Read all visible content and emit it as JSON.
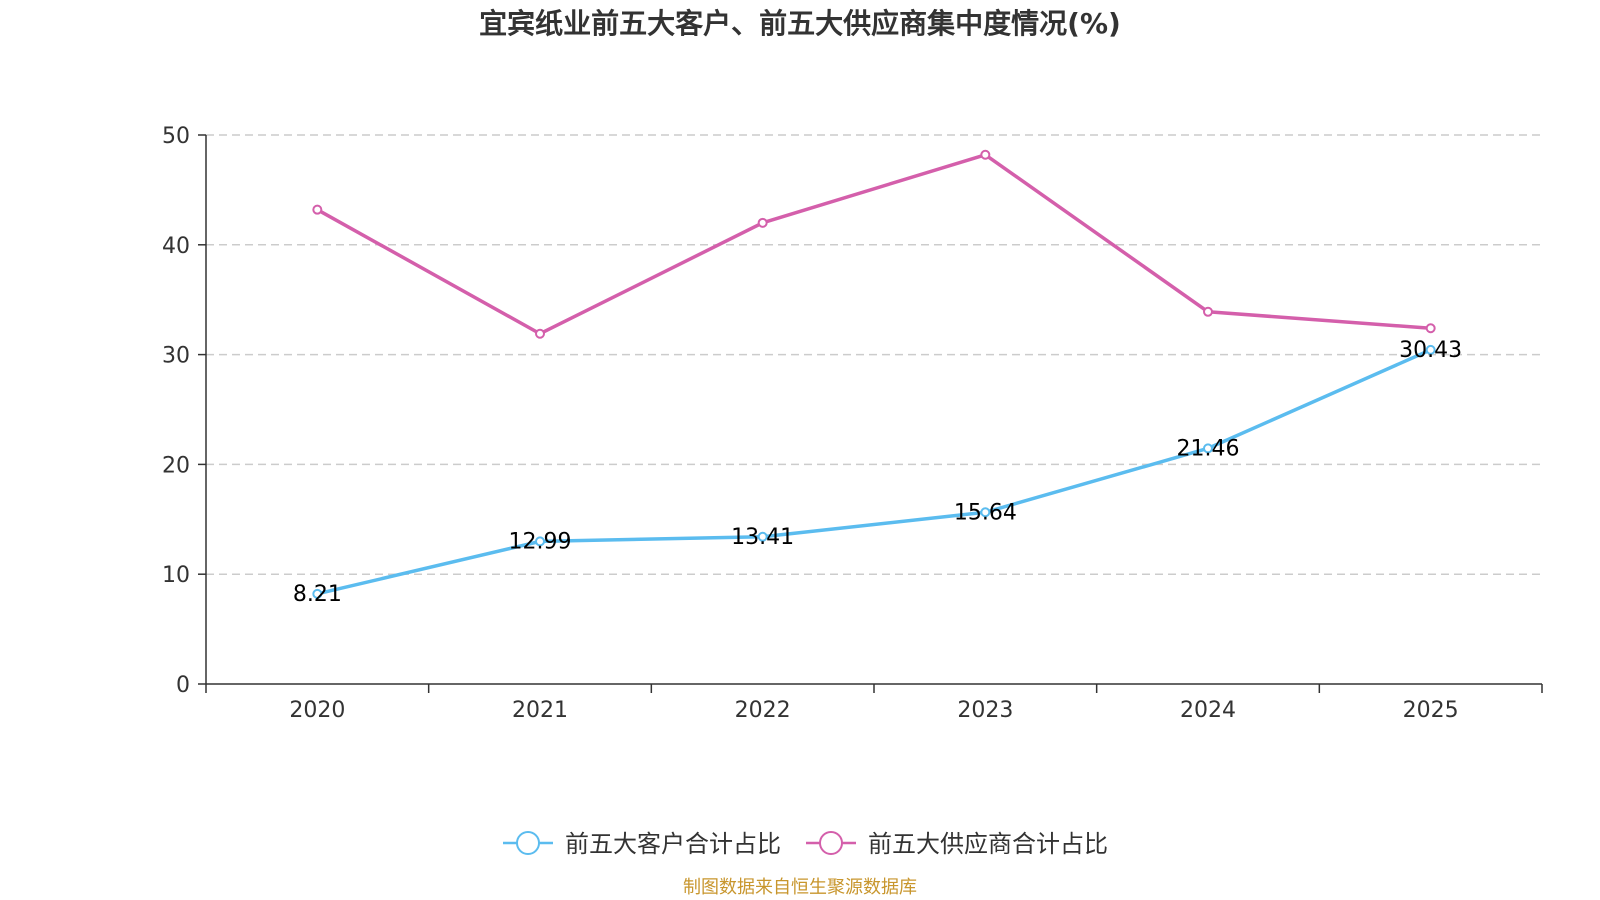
{
  "chart_data": {
    "type": "line",
    "title": "宜宾纸业前五大客户、前五大供应商集中度情况(%)",
    "xlabel": "",
    "ylabel": "",
    "categories": [
      "2020",
      "2021",
      "2022",
      "2023",
      "2024",
      "2025"
    ],
    "ylim": [
      0,
      50
    ],
    "yticks": [
      0,
      10,
      20,
      30,
      40,
      50
    ],
    "grid": true,
    "legend_position": "bottom-center",
    "series": [
      {
        "name": "前五大客户合计占比",
        "color": "#5bbcef",
        "values": [
          8.21,
          12.99,
          13.41,
          15.64,
          21.46,
          30.43
        ],
        "data_labels": [
          "8.21",
          "12.99",
          "13.41",
          "15.64",
          "21.46",
          "30.43"
        ]
      },
      {
        "name": "前五大供应商合计占比",
        "color": "#d45fab",
        "values": [
          43.2,
          31.9,
          42.0,
          48.2,
          33.9,
          32.4
        ],
        "data_labels": []
      }
    ],
    "source": "制图数据来自恒生聚源数据库",
    "source_color": "#c8962d"
  }
}
